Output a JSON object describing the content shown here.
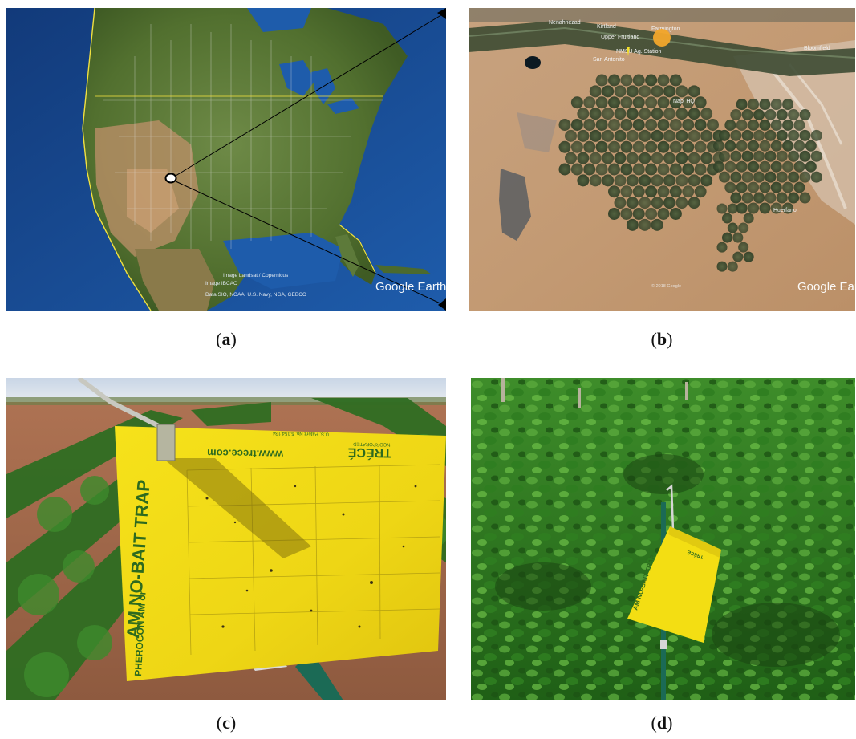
{
  "figure": {
    "panels": [
      {
        "id": "a",
        "caption_open": "(",
        "caption_letter": "a",
        "caption_close": ")",
        "content": "satellite-map-north-america",
        "watermark": "Google Earth",
        "attribution": [
          "Image Landsat / Copernicus",
          "Image IBCAO",
          "Data SIO, NOAA, U.S. Navy, NGA, GEBCO"
        ]
      },
      {
        "id": "b",
        "caption_open": "(",
        "caption_letter": "b",
        "caption_close": ")",
        "content": "satellite-map-farmington-region",
        "watermark": "Google Earth",
        "place_labels": {
          "nenahnezad": "Nenahnezad",
          "kirtland": "Kirtland",
          "farmington": "Farmington",
          "upper_fruitland": "Upper Fruitland",
          "nmsu": "NMSU Ag. Station",
          "san_antonito": "San Antonito",
          "bloomfield": "Bloomfield",
          "napi_hq": "Napi HQ",
          "huerfano": "Huerfano",
          "copyright": "© 2018 Google"
        }
      },
      {
        "id": "c",
        "caption_open": "(",
        "caption_letter": "c",
        "caption_close": ")",
        "content": "photo-sticky-trap-closeup",
        "trap_brand": "TRÉCÉ",
        "trap_brand_sub": "INCORPORATED",
        "trap_url": "www.trece.com",
        "trap_title": "AM NO-BAIT TRAP",
        "trap_prefix": "PHEROCON AM or",
        "trap_fine_print": "U.S. Patent No. 5,154,134"
      },
      {
        "id": "d",
        "caption_open": "(",
        "caption_letter": "d",
        "caption_close": ")",
        "content": "photo-trap-in-potato-field",
        "trap_mini_label": "AM NO-BAIT TRAP",
        "trap_mini_brand": "TRÉCÉ"
      }
    ]
  },
  "colors": {
    "ocean": "#1f4f9a",
    "land": "#5d7a3a",
    "desert": "#c9a27c",
    "trap_yellow": "#f2dc14",
    "foliage": "#2e7d1e",
    "soil": "#a8684a"
  }
}
